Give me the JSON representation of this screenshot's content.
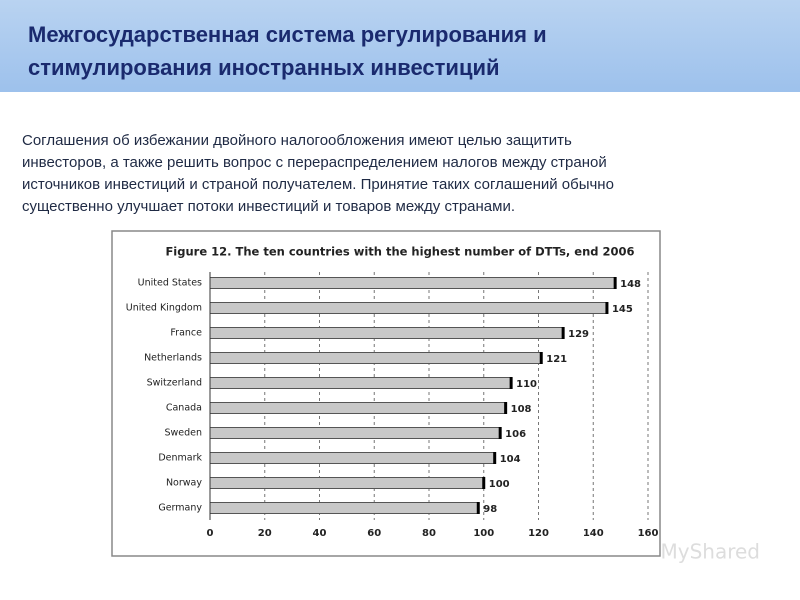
{
  "slide": {
    "title_lines": [
      "Межгосударственная система регулирования и",
      "стимулирования иностранных инвестиций"
    ],
    "text_lines": [
      "Соглашения об избежании двойного налогообложения имеют целью защитить",
      "инвесторов, а также решить вопрос с перераспределением налогов между страной",
      "источников инвестиций и страной получателем. Принятие таких соглашений обычно",
      "существенно улучшает потоки инвестиций и товаров  между странами."
    ],
    "watermark": "MyShared"
  },
  "chart_data": {
    "type": "hbar",
    "title": "Figure 12.  The ten countries with the highest number of DTTs, end 2006",
    "categories": [
      "United States",
      "United Kingdom",
      "France",
      "Netherlands",
      "Switzerland",
      "Canada",
      "Sweden",
      "Denmark",
      "Norway",
      "Germany"
    ],
    "values": [
      148,
      145,
      129,
      121,
      110,
      108,
      106,
      104,
      100,
      98
    ],
    "color": "#c8c8c8",
    "xlim": [
      0,
      160
    ],
    "xticks": [
      0,
      20,
      40,
      60,
      80,
      100,
      120,
      140,
      160
    ],
    "grid": true
  }
}
